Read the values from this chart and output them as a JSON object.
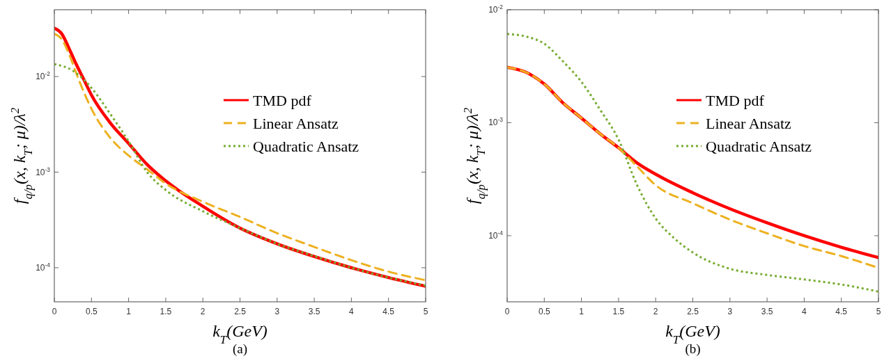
{
  "chart_data": [
    {
      "type": "line",
      "xlabel": "k$_{T}$(GeV)",
      "ylabel": "f$_{q/p}$(x, k$_{T}$; μ)/λ$^{2}$",
      "annotations": [
        "(a)"
      ],
      "log": "y",
      "legend": "right",
      "grid": false,
      "xlim": [
        0,
        5
      ],
      "xticks": [
        0,
        0.5,
        1,
        1.5,
        2,
        2.5,
        3,
        3.5,
        4,
        4.5,
        5
      ],
      "ylim": [
        4.4e-05,
        0.05
      ],
      "yticks": [
        {
          "value": 0.0001,
          "label": "10$^{-4}$"
        },
        {
          "value": 0.001,
          "label": "10$^{-3}$"
        },
        {
          "value": 0.01,
          "label": "10$^{-2}$"
        }
      ],
      "x": [
        0,
        0.1,
        0.2,
        0.3,
        0.4,
        0.5,
        0.75,
        1,
        1.25,
        1.5,
        2,
        2.5,
        3,
        3.5,
        4,
        4.5,
        5
      ],
      "series": [
        {
          "name": "TMD pdf",
          "color": "#ff0000",
          "line_style": "solid",
          "values": [
            0.032,
            0.028,
            0.0195,
            0.0132,
            0.0092,
            0.0064,
            0.0033,
            0.002,
            0.0012,
            0.00081,
            0.00044,
            0.00026,
            0.000178,
            0.000131,
            0.0001,
            7.9e-05,
            6.4e-05
          ]
        },
        {
          "name": "Linear Ansatz",
          "color": "#edb120",
          "line_style": "dashed",
          "values": [
            0.028,
            0.0245,
            0.017,
            0.0106,
            0.0068,
            0.0046,
            0.0023,
            0.00149,
            0.00107,
            0.00076,
            0.00049,
            0.00034,
            0.00023,
            0.000165,
            0.00012,
            9.1e-05,
            7.4e-05
          ]
        },
        {
          "name": "Quadratic Ansatz",
          "color": "#77ac30",
          "line_style": "dotted",
          "x": [
            0,
            0.25,
            0.5,
            0.75,
            1,
            1.25,
            1.5,
            2,
            2.5,
            3,
            3.5,
            4,
            4.5,
            5
          ],
          "values": [
            0.0135,
            0.0115,
            0.0076,
            0.0041,
            0.0021,
            0.001,
            0.00065,
            0.00039,
            0.00026,
            0.000178,
            0.000132,
            0.0001,
            7.9e-05,
            6.5e-05
          ]
        }
      ]
    },
    {
      "type": "line",
      "xlabel": "k$_{T}$(GeV)",
      "ylabel": "f$_{q/p}$(x, k$_{T}$; μ)/λ$^{2}$",
      "annotations": [
        "(b)"
      ],
      "log": "y",
      "legend": "right",
      "grid": false,
      "xlim": [
        0,
        5
      ],
      "xticks": [
        0,
        0.5,
        1,
        1.5,
        2,
        2.5,
        3,
        3.5,
        4,
        4.5,
        5
      ],
      "ylim": [
        2.6e-05,
        0.01
      ],
      "yticks": [
        {
          "value": 0.0001,
          "label": "10$^{-4}$"
        },
        {
          "value": 0.001,
          "label": "10$^{-3}$"
        },
        {
          "value": 0.01,
          "label": "10$^{-2}$"
        }
      ],
      "x": [
        0,
        0.25,
        0.5,
        0.75,
        1,
        1.25,
        1.5,
        1.75,
        2,
        2.5,
        3,
        3.5,
        4,
        4.5,
        5
      ],
      "series": [
        {
          "name": "TMD pdf",
          "color": "#ff0000",
          "line_style": "solid",
          "values": [
            0.0031,
            0.0028,
            0.0022,
            0.0015,
            0.0011,
            0.0008,
            0.0006,
            0.00044,
            0.00035,
            0.00024,
            0.000173,
            0.00013,
            0.0001,
            7.9e-05,
            6.4e-05
          ]
        },
        {
          "name": "Linear Ansatz",
          "color": "#edb120",
          "line_style": "dashed",
          "values": [
            0.0031,
            0.0028,
            0.0022,
            0.0015,
            0.0011,
            0.0008,
            0.0006,
            0.00041,
            0.00028,
            0.000194,
            0.000139,
            0.000105,
            8.1e-05,
            6.6e-05,
            5.2e-05
          ]
        },
        {
          "name": "Quadratic Ansatz",
          "color": "#77ac30",
          "line_style": "dotted",
          "x": [
            0,
            0.25,
            0.5,
            0.75,
            1,
            1.25,
            1.5,
            1.75,
            2,
            2.25,
            2.5,
            3,
            3.5,
            4,
            4.5,
            5
          ],
          "values": [
            0.0061,
            0.0058,
            0.005,
            0.0035,
            0.0023,
            0.00131,
            0.00071,
            0.00028,
            0.000142,
            9.5e-05,
            7.1e-05,
            5.1e-05,
            4.5e-05,
            4.1e-05,
            3.7e-05,
            3.2e-05
          ]
        }
      ]
    }
  ]
}
